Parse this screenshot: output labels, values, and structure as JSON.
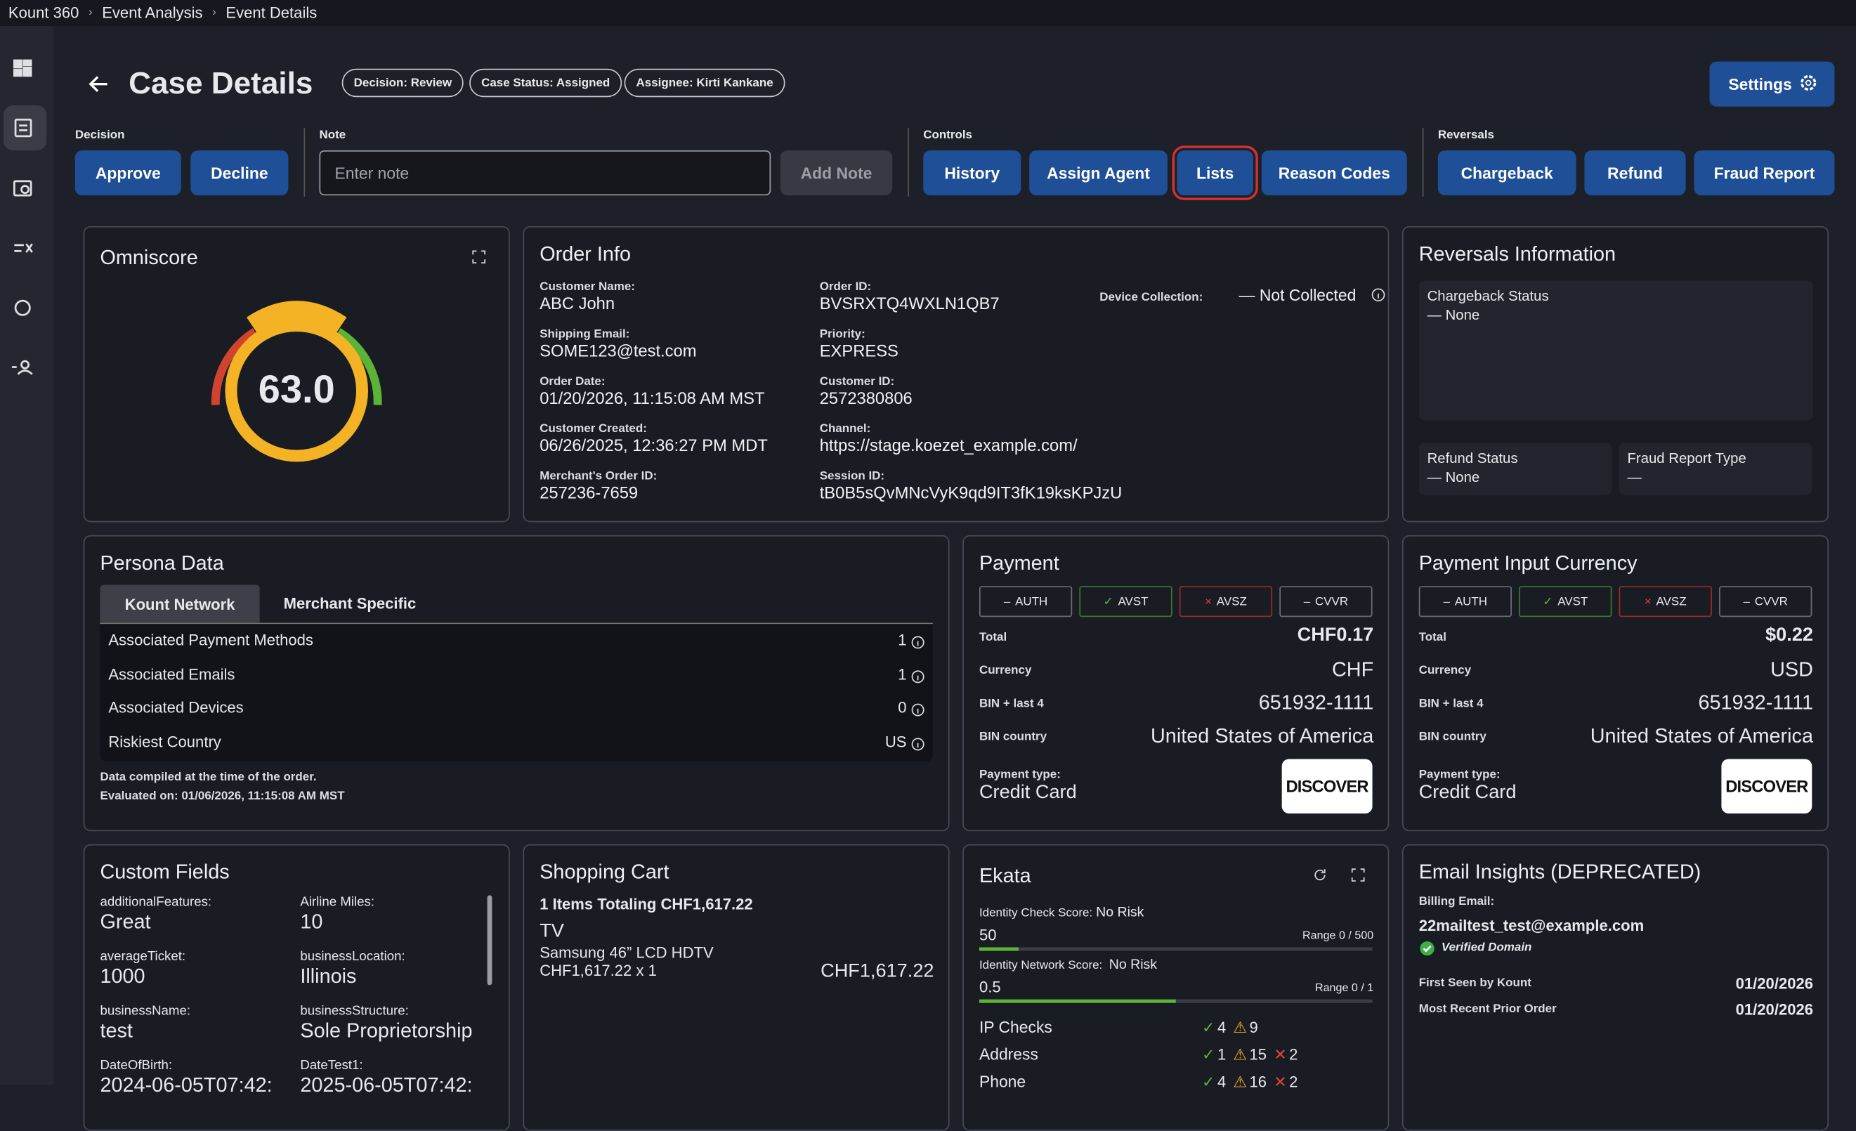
{
  "breadcrumb": [
    "Kount 360",
    "Event Analysis",
    "Event Details"
  ],
  "header": {
    "title": "Case Details",
    "badges": [
      "Decision: Review",
      "Case Status: Assigned",
      "Assignee: Kirti Kankane"
    ],
    "settings": "Settings"
  },
  "toolbar": {
    "decision": {
      "label": "Decision",
      "buttons": [
        "Approve",
        "Decline"
      ]
    },
    "note": {
      "label": "Note",
      "placeholder": "Enter note",
      "button": "Add Note"
    },
    "controls": {
      "label": "Controls",
      "buttons": [
        "History",
        "Assign Agent",
        "Lists",
        "Reason Codes"
      ]
    },
    "reversals": {
      "label": "Reversals",
      "buttons": [
        "Chargeback",
        "Refund",
        "Fraud Report"
      ]
    }
  },
  "omniscore": {
    "title": "Omniscore",
    "score": "63.0"
  },
  "order_info": {
    "title": "Order Info",
    "left": [
      {
        "label": "Customer Name:",
        "value": "ABC John"
      },
      {
        "label": "Shipping Email:",
        "value": "SOME123@test.com"
      },
      {
        "label": "Order Date:",
        "value": "01/20/2026, 11:15:08 AM MST"
      },
      {
        "label": "Customer Created:",
        "value": "06/26/2025, 12:36:27 PM MDT"
      },
      {
        "label": "Merchant's Order ID:",
        "value": "257236-7659"
      }
    ],
    "right": [
      {
        "label": "Order ID:",
        "value": "BVSRXTQ4WXLN1QB7"
      },
      {
        "label": "Priority:",
        "value": "EXPRESS"
      },
      {
        "label": "Customer ID:",
        "value": "2572380806"
      },
      {
        "label": "Channel:",
        "value": "https://stage.koezet_example.com/"
      },
      {
        "label": "Session ID:",
        "value": "tB0B5sQvMNcVyK9qd9IT3fK19ksKPJzU"
      }
    ],
    "device": {
      "label": "Device Collection:",
      "value": "— Not Collected"
    }
  },
  "reversals_info": {
    "title": "Reversals Information",
    "chargeback": {
      "label": "Chargeback Status",
      "value": "— None"
    },
    "refund": {
      "label": "Refund Status",
      "value": "— None"
    },
    "fraud": {
      "label": "Fraud Report Type",
      "value": "—"
    }
  },
  "persona": {
    "title": "Persona Data",
    "tabs": [
      "Kount Network",
      "Merchant Specific"
    ],
    "rows": [
      {
        "label": "Associated Payment Methods",
        "value": "1"
      },
      {
        "label": "Associated Emails",
        "value": "1"
      },
      {
        "label": "Associated Devices",
        "value": "0"
      },
      {
        "label": "Riskiest Country",
        "value": "US"
      }
    ],
    "notes": [
      "Data compiled at the time of the order.",
      "Evaluated on: 01/06/2026, 11:15:08 AM MST"
    ]
  },
  "payments": [
    {
      "title": "Payment",
      "checks": [
        {
          "icon": "–",
          "label": "AUTH"
        },
        {
          "icon": "✓",
          "label": "AVST"
        },
        {
          "icon": "×",
          "label": "AVSZ"
        },
        {
          "icon": "–",
          "label": "CVVR"
        }
      ],
      "fields": [
        {
          "label": "Total",
          "value": "CHF0.17"
        },
        {
          "label": "Currency",
          "value": "CHF"
        },
        {
          "label": "BIN + last 4",
          "value": "651932-1111"
        },
        {
          "label": "BIN country",
          "value": "United States of America"
        }
      ],
      "type_label": "Payment type:",
      "type_value": "Credit Card",
      "logo": "DISCOVER"
    },
    {
      "title": "Payment Input Currency",
      "checks": [
        {
          "icon": "–",
          "label": "AUTH"
        },
        {
          "icon": "✓",
          "label": "AVST"
        },
        {
          "icon": "×",
          "label": "AVSZ"
        },
        {
          "icon": "–",
          "label": "CVVR"
        }
      ],
      "fields": [
        {
          "label": "Total",
          "value": "$0.22"
        },
        {
          "label": "Currency",
          "value": "USD"
        },
        {
          "label": "BIN + last 4",
          "value": "651932-1111"
        },
        {
          "label": "BIN country",
          "value": "United States of America"
        }
      ],
      "type_label": "Payment type:",
      "type_value": "Credit Card",
      "logo": "DISCOVER"
    }
  ],
  "custom_fields": {
    "title": "Custom Fields",
    "fields": [
      {
        "label": "additionalFeatures:",
        "value": "Great"
      },
      {
        "label": "Airline Miles:",
        "value": "10"
      },
      {
        "label": "averageTicket:",
        "value": "1000"
      },
      {
        "label": "businessLocation:",
        "value": "Illinois"
      },
      {
        "label": "businessName:",
        "value": "test"
      },
      {
        "label": "businessStructure:",
        "value": "Sole Proprietorship"
      },
      {
        "label": "DateOfBirth:",
        "value": "2024-06-05T07:42:"
      },
      {
        "label": "DateTest1:",
        "value": "2025-06-05T07:42:"
      }
    ]
  },
  "cart": {
    "title": "Shopping Cart",
    "summary": "1 Items Totaling CHF1,617.22",
    "item": {
      "name": "TV",
      "description": "Samsung 46” LCD HDTV",
      "quantity": "CHF1,617.22 x 1",
      "total": "CHF1,617.22"
    }
  },
  "ekata": {
    "title": "Ekata",
    "scores": [
      {
        "label": "Identity Check Score:",
        "risk": "No Risk",
        "score": "50",
        "range": "Range 0 / 500"
      },
      {
        "label": "Identity Network Score:",
        "risk": "No Risk",
        "score": "0.5",
        "range": "Range 0 / 1"
      }
    ],
    "checks": [
      {
        "label": "IP Checks",
        "pass": "4",
        "warn": "9"
      },
      {
        "label": "Address",
        "pass": "1",
        "warn": "15",
        "fail": "2"
      },
      {
        "label": "Phone",
        "pass": "4",
        "warn": "16",
        "fail": "2"
      }
    ]
  },
  "email": {
    "title": "Email Insights (DEPRECATED)",
    "billing_label": "Billing Email:",
    "address": "22mailtest_test@example.com",
    "verified": "Verified Domain",
    "rows": [
      {
        "label": "First Seen by Kount",
        "value": "01/20/2026"
      },
      {
        "label": "Most Recent Prior Order",
        "value": "01/20/2026"
      }
    ]
  }
}
